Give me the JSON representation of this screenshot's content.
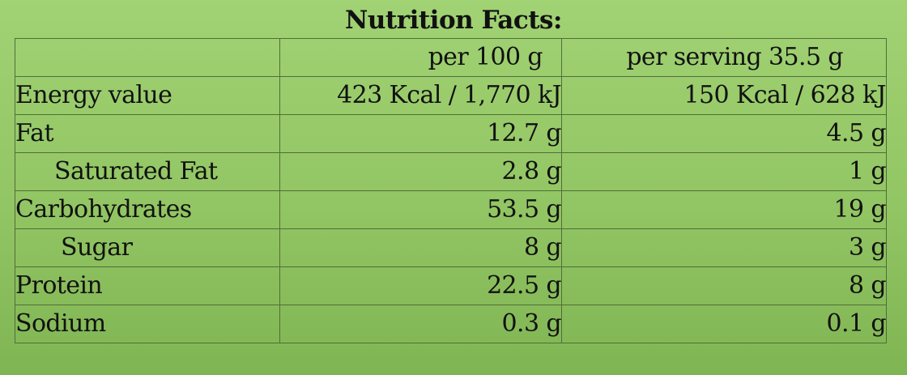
{
  "title": "Nutrition Facts:",
  "columns": [
    "",
    "per 100 g",
    "per serving 35.5 g"
  ],
  "rows": [
    {
      "label": "Energy value",
      "per100": "423 Kcal / 1,770 kJ",
      "serving": "150 Kcal / 628 kJ"
    },
    {
      "label": "Fat",
      "per100": "12.7 g",
      "serving": "4.5 g"
    },
    {
      "label": "Saturated Fat",
      "per100": "2.8 g",
      "serving": "1 g"
    },
    {
      "label": "Carbohydrates",
      "per100": "53.5 g",
      "serving": "19 g"
    },
    {
      "label": "Sugar",
      "per100": "8 g",
      "serving": "3 g"
    },
    {
      "label": "Protein",
      "per100": "22.5 g",
      "serving": "8 g"
    },
    {
      "label": "Sodium",
      "per100": "0.3 g",
      "serving": "0.1 g"
    }
  ],
  "colors": {
    "background_top": "#a1d274",
    "background_bottom": "#80b553",
    "border": "#4f6e3a",
    "text": "#111111"
  }
}
